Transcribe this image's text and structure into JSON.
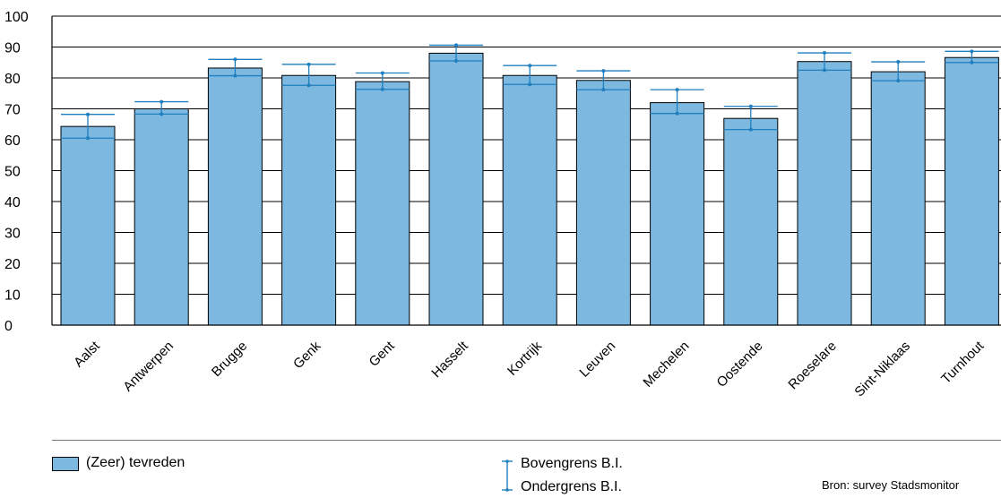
{
  "chart_data": {
    "type": "bar",
    "categories": [
      "Aalst",
      "Antwerpen",
      "Brugge",
      "Genk",
      "Gent",
      "Hasselt",
      "Kortrijk",
      "Leuven",
      "Mechelen",
      "Oostende",
      "Roeselare",
      "Sint-Niklaas",
      "Turnhout"
    ],
    "series": [
      {
        "name": "(Zeer) tevreden",
        "values": [
          64.3,
          70.0,
          83.2,
          80.8,
          78.8,
          88.0,
          80.8,
          79.2,
          72.0,
          66.9,
          85.3,
          82.0,
          86.6
        ]
      }
    ],
    "ci_upper": [
      68.2,
      72.3,
      86.0,
      84.4,
      81.6,
      90.6,
      84.0,
      82.3,
      76.2,
      70.8,
      88.1,
      85.2,
      88.6
    ],
    "ci_lower": [
      60.5,
      68.3,
      80.7,
      77.6,
      76.3,
      85.5,
      77.9,
      76.2,
      68.5,
      63.3,
      82.5,
      79.1,
      85.0
    ],
    "ylim": [
      0,
      100
    ],
    "yticks": [
      "0",
      "10",
      "20",
      "30",
      "40",
      "50",
      "60",
      "70",
      "80",
      "90",
      "100"
    ],
    "grid": true,
    "legend": {
      "bar_label": "(Zeer) tevreden",
      "upper_label": "Bovengrens B.I.",
      "lower_label": "Ondergrens B.I."
    },
    "source": "Bron: survey Stadsmonitor"
  },
  "colors": {
    "bar_fill": "#7cb8e0",
    "ci_line": "#1f7fbf",
    "grid": "#000000"
  }
}
